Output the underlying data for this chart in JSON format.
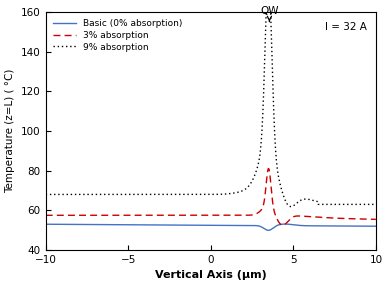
{
  "title": "",
  "xlabel": "Vertical Axis (μm)",
  "ylabel": "Temperature (z=L) ( °C)",
  "xlim": [
    -10,
    10
  ],
  "ylim": [
    40,
    160
  ],
  "yticks": [
    40,
    60,
    80,
    100,
    120,
    140,
    160
  ],
  "xticks": [
    -10,
    -5,
    0,
    5,
    10
  ],
  "annotation_text": "QW",
  "peak_x": 3.5,
  "label_text": "I = 32 A",
  "blue_color": "#4472C4",
  "red_color": "#CC0000",
  "black_color": "#000000",
  "background_color": "#ffffff",
  "legend_labels": [
    "Basic (0% absorption)",
    "3% absorption",
    "9% absorption"
  ]
}
